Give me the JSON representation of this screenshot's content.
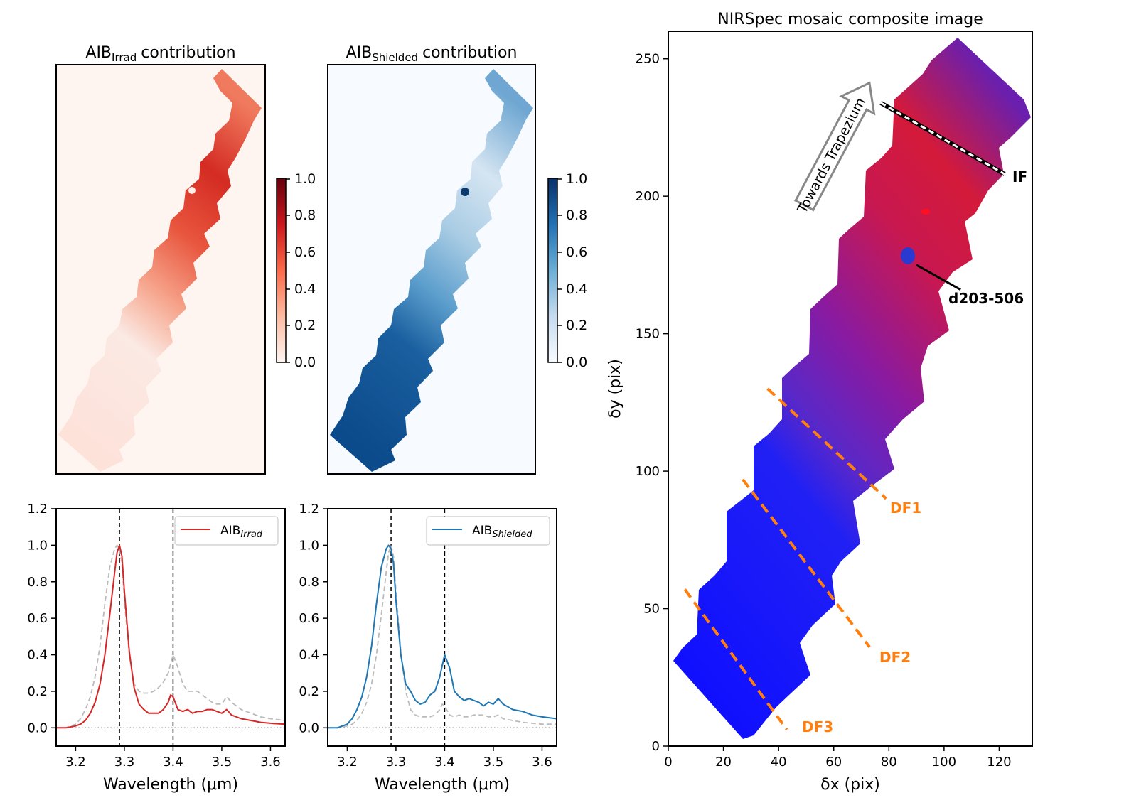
{
  "chart_data": [
    {
      "id": "map-irrad",
      "type": "heatmap",
      "title": "AIB",
      "title_sub": "Irrad",
      "title_suffix": "contribution",
      "colormap": "Reds",
      "colorbar": {
        "range": [
          0,
          1
        ],
        "ticks": [
          "0.0",
          "0.2",
          "0.4",
          "0.6",
          "0.8",
          "1.0"
        ]
      },
      "description_value": "high in upper half, low in lower half"
    },
    {
      "id": "map-shielded",
      "type": "heatmap",
      "title": "AIB",
      "title_sub": "Shielded",
      "title_suffix": "contribution",
      "colormap": "Blues",
      "colorbar": {
        "range": [
          0,
          1
        ],
        "ticks": [
          "0.0",
          "0.2",
          "0.4",
          "0.6",
          "0.8",
          "1.0"
        ]
      }
    },
    {
      "id": "spec-irrad",
      "type": "line",
      "xlabel": "Wavelength (μm)",
      "ylabel": "",
      "xlim": [
        3.16,
        3.63
      ],
      "ylim": [
        -0.1,
        1.2
      ],
      "xticks": [
        "3.2",
        "3.3",
        "3.4",
        "3.5",
        "3.6"
      ],
      "yticks": [
        "0.0",
        "0.2",
        "0.4",
        "0.6",
        "0.8",
        "1.0",
        "1.2"
      ],
      "vlines": [
        3.29,
        3.4
      ],
      "legend": {
        "label": "AIB",
        "sub": "Irrad",
        "position": "top-right"
      },
      "series": [
        {
          "name": "AIB_Irrad",
          "color": "#d62728",
          "style": "solid",
          "x": [
            3.16,
            3.18,
            3.2,
            3.21,
            3.22,
            3.23,
            3.24,
            3.25,
            3.26,
            3.27,
            3.28,
            3.285,
            3.29,
            3.295,
            3.3,
            3.31,
            3.32,
            3.33,
            3.34,
            3.35,
            3.36,
            3.37,
            3.38,
            3.385,
            3.39,
            3.395,
            3.4,
            3.41,
            3.42,
            3.43,
            3.44,
            3.45,
            3.46,
            3.47,
            3.48,
            3.49,
            3.5,
            3.51,
            3.52,
            3.54,
            3.56,
            3.58,
            3.6,
            3.63
          ],
          "y": [
            0.0,
            0.0,
            0.01,
            0.02,
            0.04,
            0.08,
            0.14,
            0.24,
            0.4,
            0.62,
            0.85,
            0.96,
            1.0,
            0.94,
            0.75,
            0.42,
            0.22,
            0.13,
            0.1,
            0.08,
            0.08,
            0.08,
            0.1,
            0.12,
            0.14,
            0.18,
            0.17,
            0.1,
            0.09,
            0.1,
            0.08,
            0.09,
            0.09,
            0.1,
            0.1,
            0.09,
            0.08,
            0.1,
            0.07,
            0.05,
            0.04,
            0.03,
            0.025,
            0.02
          ]
        },
        {
          "name": "AIB_Shielded (reference)",
          "color": "#bbbbbb",
          "style": "dashed",
          "x": [
            3.16,
            3.18,
            3.2,
            3.21,
            3.22,
            3.23,
            3.24,
            3.25,
            3.26,
            3.27,
            3.28,
            3.285,
            3.29,
            3.295,
            3.3,
            3.31,
            3.32,
            3.33,
            3.34,
            3.35,
            3.36,
            3.37,
            3.38,
            3.39,
            3.4,
            3.41,
            3.42,
            3.43,
            3.44,
            3.45,
            3.46,
            3.47,
            3.48,
            3.49,
            3.5,
            3.51,
            3.52,
            3.54,
            3.56,
            3.58,
            3.6,
            3.63
          ],
          "y": [
            0.0,
            0.0,
            0.02,
            0.05,
            0.1,
            0.17,
            0.28,
            0.45,
            0.68,
            0.88,
            0.98,
            1.0,
            0.98,
            0.9,
            0.7,
            0.4,
            0.24,
            0.2,
            0.19,
            0.19,
            0.2,
            0.22,
            0.25,
            0.3,
            0.4,
            0.33,
            0.24,
            0.2,
            0.2,
            0.2,
            0.18,
            0.16,
            0.14,
            0.13,
            0.13,
            0.17,
            0.14,
            0.1,
            0.08,
            0.06,
            0.05,
            0.04
          ]
        }
      ]
    },
    {
      "id": "spec-shielded",
      "type": "line",
      "xlabel": "Wavelength (μm)",
      "ylabel": "",
      "xlim": [
        3.16,
        3.63
      ],
      "ylim": [
        -0.1,
        1.2
      ],
      "xticks": [
        "3.2",
        "3.3",
        "3.4",
        "3.5",
        "3.6"
      ],
      "yticks": [
        "0.0",
        "0.2",
        "0.4",
        "0.6",
        "0.8",
        "1.0",
        "1.2"
      ],
      "vlines": [
        3.29,
        3.4
      ],
      "legend": {
        "label": "AIB",
        "sub": "Shielded",
        "position": "top-right"
      },
      "series": [
        {
          "name": "AIB_Shielded",
          "color": "#1f77b4",
          "style": "solid",
          "x": [
            3.16,
            3.18,
            3.2,
            3.21,
            3.22,
            3.23,
            3.24,
            3.25,
            3.26,
            3.27,
            3.28,
            3.285,
            3.29,
            3.295,
            3.3,
            3.31,
            3.32,
            3.33,
            3.34,
            3.35,
            3.36,
            3.37,
            3.38,
            3.39,
            3.4,
            3.41,
            3.42,
            3.43,
            3.44,
            3.45,
            3.46,
            3.47,
            3.48,
            3.49,
            3.5,
            3.51,
            3.52,
            3.54,
            3.56,
            3.58,
            3.6,
            3.63
          ],
          "y": [
            0.0,
            0.0,
            0.02,
            0.05,
            0.1,
            0.17,
            0.28,
            0.45,
            0.68,
            0.88,
            0.98,
            1.0,
            0.98,
            0.9,
            0.7,
            0.4,
            0.24,
            0.2,
            0.15,
            0.13,
            0.14,
            0.18,
            0.2,
            0.28,
            0.4,
            0.33,
            0.2,
            0.17,
            0.15,
            0.16,
            0.15,
            0.14,
            0.12,
            0.14,
            0.13,
            0.16,
            0.13,
            0.1,
            0.09,
            0.07,
            0.06,
            0.05
          ]
        },
        {
          "name": "AIB_Irrad (reference)",
          "color": "#bbbbbb",
          "style": "dashed",
          "x": [
            3.16,
            3.18,
            3.2,
            3.21,
            3.22,
            3.23,
            3.24,
            3.25,
            3.26,
            3.27,
            3.28,
            3.285,
            3.29,
            3.295,
            3.3,
            3.31,
            3.32,
            3.33,
            3.34,
            3.35,
            3.36,
            3.37,
            3.38,
            3.39,
            3.395,
            3.4,
            3.41,
            3.42,
            3.43,
            3.44,
            3.45,
            3.46,
            3.47,
            3.48,
            3.49,
            3.5,
            3.51,
            3.52,
            3.54,
            3.56,
            3.58,
            3.6,
            3.63
          ],
          "y": [
            0.0,
            0.0,
            0.01,
            0.02,
            0.04,
            0.08,
            0.14,
            0.24,
            0.4,
            0.62,
            0.85,
            0.96,
            1.0,
            0.94,
            0.75,
            0.42,
            0.2,
            0.1,
            0.07,
            0.06,
            0.06,
            0.06,
            0.07,
            0.1,
            0.13,
            0.12,
            0.07,
            0.06,
            0.07,
            0.06,
            0.06,
            0.07,
            0.07,
            0.07,
            0.06,
            0.06,
            0.07,
            0.05,
            0.04,
            0.03,
            0.025,
            0.02,
            0.02
          ]
        }
      ]
    },
    {
      "id": "composite",
      "type": "heatmap",
      "title": "NIRSpec mosaic composite image",
      "xlabel": "δx (pix)",
      "ylabel": "δy (pix)",
      "xlim": [
        0,
        132
      ],
      "ylim": [
        0,
        260
      ],
      "xticks": [
        0,
        20,
        40,
        60,
        80,
        100,
        120
      ],
      "yticks": [
        0,
        50,
        100,
        150,
        200,
        250
      ],
      "arrow_label": "Towards Trapezium",
      "annotations": [
        {
          "label": "IF",
          "color": "#000000"
        },
        {
          "label": "d203-506",
          "color": "#000000"
        },
        {
          "label": "DF1",
          "color": "#ff7f0e"
        },
        {
          "label": "DF2",
          "color": "#ff7f0e"
        },
        {
          "label": "DF3",
          "color": "#ff7f0e"
        }
      ],
      "lines": [
        {
          "name": "IF",
          "from": [
            77,
            234
          ],
          "to": [
            122,
            208
          ],
          "style": "white-black-dashed"
        },
        {
          "name": "DF1",
          "from": [
            36,
            130
          ],
          "to": [
            79,
            90
          ],
          "style": "orange-dashed"
        },
        {
          "name": "DF2",
          "from": [
            27,
            97
          ],
          "to": [
            73,
            36
          ],
          "style": "orange-dashed"
        },
        {
          "name": "DF3",
          "from": [
            6,
            57
          ],
          "to": [
            43,
            6
          ],
          "style": "orange-dashed"
        },
        {
          "name": "d203-506",
          "from": [
            90,
            175
          ],
          "to": [
            106,
            166
          ],
          "style": "black-solid"
        }
      ]
    }
  ]
}
